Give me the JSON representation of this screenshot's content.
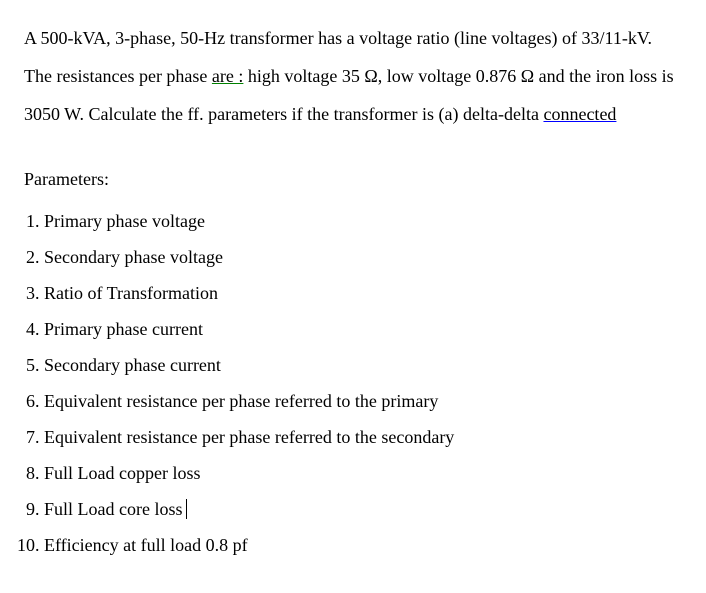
{
  "problem": {
    "pre1": "A 500-kVA, 3-phase, 50-Hz transformer has a voltage ratio (line voltages) of 33/11-kV. The resistances per phase ",
    "are": "are :",
    "post1": " high voltage 35 Ω, low voltage 0.876 Ω and the iron loss is 3050 W. Calculate the ff. parameters if the transformer is (a) delta-delta ",
    "connected": "connected"
  },
  "heading": "Parameters:",
  "items": [
    "Primary phase voltage",
    "Secondary phase voltage",
    "Ratio of Transformation",
    "Primary phase current",
    "Secondary phase current",
    "Equivalent resistance per phase referred to the primary",
    "Equivalent resistance per phase referred to the secondary",
    "Full Load copper loss",
    "Full Load core loss",
    "Efficiency at full load 0.8 pf"
  ]
}
